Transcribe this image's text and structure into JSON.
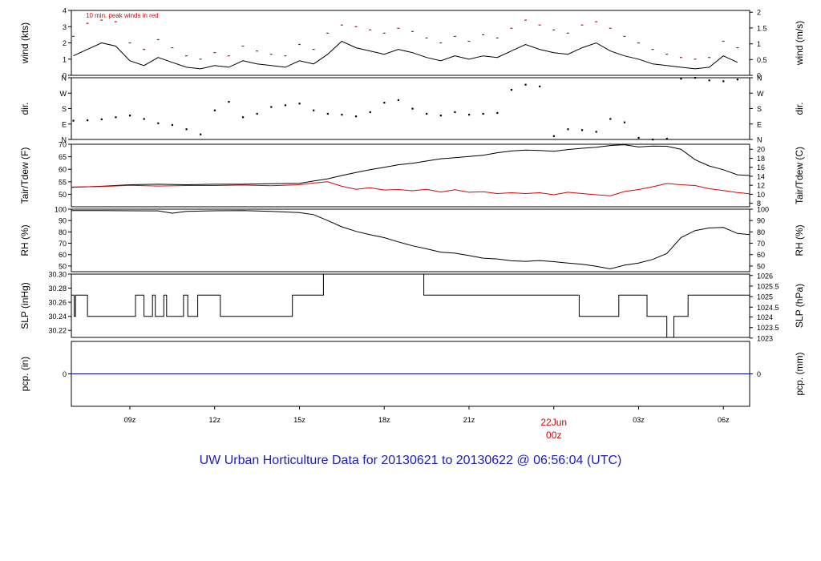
{
  "colors": {
    "axis": "#000000",
    "series_black": "#000000",
    "peak_red": "#e00000",
    "dew_red": "#e00000",
    "precip_blue": "#0000cc",
    "title_blue": "#1a1acc",
    "date_red": "#dd0000"
  },
  "chart_data": {
    "type": "line",
    "title": "UW Urban Horticulture Data for 20130621  to  20130622 @ 06:56:04  (UTC)",
    "x_axis": {
      "ticks": [
        "09z",
        "12z",
        "15z",
        "18z",
        "21z",
        "00z",
        "03z",
        "06z"
      ],
      "tick_hours": [
        9,
        12,
        15,
        18,
        21,
        24,
        27,
        30
      ],
      "date_label": "22Jun",
      "date_sub_label": "00z",
      "range_hours": [
        6.93,
        30.93
      ]
    },
    "panels": [
      {
        "id": "wind",
        "type": "line",
        "ylabel_left": "wind (kts)",
        "ylabel_right": "wind (m/s)",
        "ylim": [
          0,
          4
        ],
        "left_ticks": [
          "0",
          "1",
          "2",
          "3",
          "4"
        ],
        "left_tick_values": [
          0,
          1,
          2,
          3,
          4
        ],
        "right_ticks": [
          "0",
          "0.5",
          "1",
          "1.5",
          "2"
        ],
        "right_tick_values": [
          0,
          0.97,
          1.94,
          2.92,
          3.89
        ],
        "annotation": "10 min. peak winds in red",
        "series": [
          {
            "name": "",
            "color": "#000000",
            "x": [
              7.0,
              7.5,
              8.0,
              8.5,
              9.0,
              9.5,
              10.0,
              10.5,
              11.0,
              11.5,
              12.0,
              12.5,
              13.0,
              13.5,
              14.0,
              14.5,
              15.0,
              15.5,
              16.0,
              16.5,
              17.0,
              17.5,
              18.0,
              18.5,
              19.0,
              19.5,
              20.0,
              20.5,
              21.0,
              21.5,
              22.0,
              22.5,
              23.0,
              23.5,
              24.0,
              24.5,
              25.0,
              25.5,
              26.0,
              26.5,
              27.0,
              27.5,
              28.0,
              28.5,
              29.0,
              29.5,
              30.0,
              30.5
            ],
            "y": [
              1.2,
              1.6,
              2.0,
              1.8,
              0.9,
              0.6,
              1.1,
              0.8,
              0.5,
              0.4,
              0.6,
              0.5,
              0.9,
              0.7,
              0.6,
              0.5,
              0.9,
              0.7,
              1.3,
              2.1,
              1.7,
              1.5,
              1.3,
              1.6,
              1.4,
              1.1,
              0.9,
              1.2,
              1.0,
              1.2,
              1.1,
              1.5,
              1.9,
              1.6,
              1.4,
              1.3,
              1.7,
              2.0,
              1.5,
              1.2,
              1.0,
              0.7,
              0.6,
              0.5,
              0.4,
              0.5,
              1.2,
              0.8
            ]
          },
          {
            "name": "",
            "color": "#e00000",
            "x": [
              7.0,
              7.5,
              8.0,
              8.5,
              9.0,
              9.5,
              10.0,
              10.5,
              11.0,
              11.5,
              12.0,
              12.5,
              13.0,
              13.5,
              14.0,
              14.5,
              15.0,
              15.5,
              16.0,
              16.5,
              17.0,
              17.5,
              18.0,
              18.5,
              19.0,
              19.5,
              20.0,
              20.5,
              21.0,
              21.5,
              22.0,
              22.5,
              23.0,
              23.5,
              24.0,
              24.5,
              25.0,
              25.5,
              26.0,
              26.5,
              27.0,
              27.5,
              28.0,
              28.5,
              29.0,
              29.5,
              30.0,
              30.5
            ],
            "y": [
              2.4,
              3.2,
              3.4,
              3.3,
              2.0,
              1.6,
              2.2,
              1.7,
              1.2,
              1.0,
              1.4,
              1.2,
              1.8,
              1.5,
              1.3,
              1.2,
              1.9,
              1.6,
              2.6,
              3.1,
              3.0,
              2.8,
              2.6,
              2.9,
              2.7,
              2.3,
              2.0,
              2.4,
              2.1,
              2.5,
              2.3,
              2.9,
              3.4,
              3.1,
              2.8,
              2.6,
              3.1,
              3.3,
              2.9,
              2.4,
              2.0,
              1.6,
              1.3,
              1.1,
              1.0,
              1.1,
              2.1,
              1.7
            ]
          }
        ]
      },
      {
        "id": "dir",
        "type": "scatter",
        "ylabel_left": "dir.",
        "ylabel_right": "dir.",
        "ylim": [
          0,
          360
        ],
        "left_ticks": [
          "N",
          "E",
          "S",
          "W",
          "N"
        ],
        "left_tick_values": [
          0,
          90,
          180,
          270,
          360
        ],
        "right_ticks": [
          "N",
          "E",
          "S",
          "W",
          "N"
        ],
        "right_tick_values": [
          0,
          90,
          180,
          270,
          360
        ],
        "series": [
          {
            "name": "",
            "color": "#000000",
            "x": [
              7.0,
              7.5,
              8.0,
              8.5,
              9.0,
              9.5,
              10.0,
              10.5,
              11.0,
              11.5,
              12.0,
              12.5,
              13.0,
              13.5,
              14.0,
              14.5,
              15.0,
              15.5,
              16.0,
              16.5,
              17.0,
              17.5,
              18.0,
              18.5,
              19.0,
              19.5,
              20.0,
              20.5,
              21.0,
              21.5,
              22.0,
              22.5,
              23.0,
              23.5,
              24.0,
              24.5,
              25.0,
              25.5,
              26.0,
              26.5,
              27.0,
              27.5,
              28.0,
              28.5,
              29.0,
              29.5,
              30.0,
              30.5
            ],
            "y": [
              110,
              112,
              118,
              130,
              140,
              120,
              95,
              85,
              60,
              30,
              170,
              220,
              130,
              150,
              190,
              200,
              210,
              170,
              150,
              145,
              135,
              160,
              215,
              230,
              180,
              150,
              140,
              160,
              145,
              150,
              155,
              290,
              320,
              310,
              20,
              60,
              55,
              45,
              120,
              100,
              10,
              0,
              5,
              355,
              360,
              345,
              340,
              350
            ]
          }
        ]
      },
      {
        "id": "temp",
        "type": "line",
        "ylabel_left": "Tair/Tdew (F)",
        "ylabel_right": "Tair/Tdew (C)",
        "ylim": [
          45,
          70
        ],
        "left_ticks": [
          "50",
          "55",
          "60",
          "65",
          "70"
        ],
        "left_tick_values": [
          50,
          55,
          60,
          65,
          70
        ],
        "right_ticks": [
          "8",
          "10",
          "12",
          "14",
          "16",
          "18",
          "20"
        ],
        "right_tick_values": [
          46.4,
          50,
          53.6,
          57.2,
          60.8,
          64.4,
          68
        ],
        "series": [
          {
            "name": "",
            "color": "#000000",
            "x": [
              6.93,
              8.0,
              9.0,
              10.0,
              11.0,
              12.0,
              13.0,
              14.0,
              15.0,
              15.5,
              16.0,
              16.5,
              17.0,
              17.5,
              18.0,
              18.5,
              19.0,
              19.5,
              20.0,
              20.5,
              21.0,
              21.5,
              22.0,
              22.5,
              23.0,
              23.5,
              24.0,
              24.5,
              25.0,
              25.5,
              26.0,
              26.5,
              27.0,
              27.5,
              28.0,
              28.5,
              29.0,
              29.5,
              30.0,
              30.5,
              30.93
            ],
            "y": [
              52.8,
              53.2,
              53.8,
              54.0,
              53.8,
              54.0,
              54.0,
              54.2,
              54.4,
              55.3,
              56.2,
              57.5,
              58.7,
              59.8,
              60.8,
              61.8,
              62.4,
              63.3,
              64.2,
              64.6,
              65.1,
              65.6,
              66.6,
              67.3,
              67.7,
              67.5,
              67.2,
              67.9,
              68.4,
              68.8,
              69.5,
              69.8,
              68.9,
              69.3,
              69.2,
              68.0,
              63.8,
              61.3,
              59.8,
              57.8,
              57.5
            ]
          },
          {
            "name": "",
            "color": "#e00000",
            "x": [
              6.93,
              8.0,
              9.0,
              10.0,
              11.0,
              12.0,
              13.0,
              14.0,
              15.0,
              15.5,
              16.0,
              16.5,
              17.0,
              17.5,
              18.0,
              18.5,
              19.0,
              19.5,
              20.0,
              20.5,
              21.0,
              21.5,
              22.0,
              22.5,
              23.0,
              23.5,
              24.0,
              24.5,
              25.0,
              25.5,
              26.0,
              26.5,
              27.0,
              27.5,
              28.0,
              28.5,
              29.0,
              29.5,
              30.0,
              30.5,
              30.93
            ],
            "y": [
              52.9,
              53.1,
              53.6,
              53.3,
              53.5,
              53.5,
              53.7,
              53.4,
              53.8,
              54.5,
              55.0,
              53.2,
              52.0,
              52.6,
              51.7,
              51.9,
              51.4,
              52.0,
              50.9,
              51.8,
              50.8,
              51.0,
              50.3,
              50.6,
              50.3,
              50.6,
              49.8,
              50.8,
              50.3,
              49.8,
              49.4,
              51.1,
              51.9,
              53.0,
              54.3,
              53.8,
              53.5,
              52.2,
              51.5,
              50.7,
              50.2
            ]
          }
        ]
      },
      {
        "id": "rh",
        "type": "line",
        "ylabel_left": "RH (%)",
        "ylabel_right": "RH (%)",
        "ylim": [
          45,
          100
        ],
        "left_ticks": [
          "50",
          "60",
          "70",
          "80",
          "90",
          "100"
        ],
        "left_tick_values": [
          50,
          60,
          70,
          80,
          90,
          100
        ],
        "right_ticks": [
          "50",
          "60",
          "70",
          "80",
          "90",
          "100"
        ],
        "right_tick_values": [
          50,
          60,
          70,
          80,
          90,
          100
        ],
        "series": [
          {
            "name": "",
            "color": "#000000",
            "x": [
              6.93,
              8.0,
              9.0,
              10.0,
              10.5,
              11.0,
              12.0,
              13.0,
              14.0,
              15.0,
              15.5,
              16.0,
              16.5,
              17.0,
              17.5,
              18.0,
              18.5,
              19.0,
              19.5,
              20.0,
              20.5,
              21.0,
              21.5,
              22.0,
              22.5,
              23.0,
              23.5,
              24.0,
              24.5,
              25.0,
              25.5,
              26.0,
              26.5,
              27.0,
              27.5,
              28.0,
              28.5,
              29.0,
              29.5,
              30.0,
              30.5,
              30.93
            ],
            "y": [
              98.8,
              98.8,
              98.6,
              98.5,
              96.5,
              98.0,
              98.6,
              98.7,
              98.0,
              97.0,
              95.2,
              90.0,
              84.5,
              80.5,
              77.5,
              75.0,
              71.2,
              67.8,
              65.1,
              62.2,
              61.3,
              59.2,
              56.9,
              56.2,
              54.6,
              54.1,
              54.8,
              53.8,
              52.6,
              51.5,
              49.8,
              47.5,
              50.7,
              52.6,
              55.8,
              61.0,
              75.0,
              81.2,
              83.5,
              83.9,
              78.6,
              77.6
            ]
          }
        ]
      },
      {
        "id": "slp",
        "type": "line",
        "ylabel_left": "SLP (inHg)",
        "ylabel_right": "SLP (hPa)",
        "ylim": [
          30.21,
          30.3
        ],
        "left_ticks": [
          "30.22",
          "30.24",
          "30.26",
          "30.28",
          "30.30"
        ],
        "left_tick_values": [
          30.22,
          30.24,
          30.26,
          30.28,
          30.3
        ],
        "right_ticks": [
          "1023",
          "1023.5",
          "1024",
          "1024.5",
          "1025",
          "1025.5",
          "1026"
        ],
        "right_tick_values": [
          30.209,
          30.224,
          30.239,
          30.253,
          30.268,
          30.283,
          30.298
        ],
        "series": [
          {
            "name": "",
            "color": "#000000",
            "step": true,
            "x": [
              6.93,
              7.03,
              7.08,
              7.5,
              9.2,
              9.5,
              9.8,
              9.9,
              10.2,
              10.3,
              10.9,
              11.05,
              11.4,
              12.2,
              14.75,
              15.85,
              19.4,
              24.9,
              26.3,
              27.3,
              28.0,
              28.25,
              28.75,
              28.9,
              30.93
            ],
            "y": [
              30.27,
              30.24,
              30.27,
              30.24,
              30.27,
              30.24,
              30.27,
              30.24,
              30.27,
              30.24,
              30.27,
              30.24,
              30.27,
              30.24,
              30.27,
              30.3,
              30.27,
              30.24,
              30.27,
              30.24,
              30.21,
              30.24,
              30.27,
              30.27,
              30.27
            ]
          }
        ]
      },
      {
        "id": "pcp",
        "type": "line",
        "ylabel_left": "pcp. (in)",
        "ylabel_right": "pcp. (mm)",
        "ylim": [
          -1,
          1
        ],
        "left_ticks": [
          "0"
        ],
        "left_tick_values": [
          0
        ],
        "right_ticks": [
          "0"
        ],
        "right_tick_values": [
          0
        ],
        "series": [
          {
            "name": "",
            "color": "#0000cc",
            "x": [
              6.93,
              30.93
            ],
            "y": [
              0,
              0
            ]
          }
        ]
      }
    ]
  }
}
